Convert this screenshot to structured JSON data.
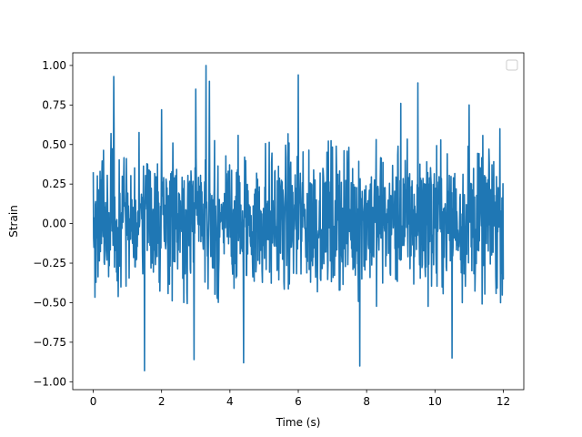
{
  "chart_data": {
    "type": "line",
    "title": "",
    "xlabel": "Time (s)",
    "ylabel": "Strain",
    "xlim": [
      -0.6,
      12.6
    ],
    "ylim": [
      -1.05,
      1.08
    ],
    "xticks": [
      0,
      2,
      4,
      6,
      8,
      10,
      12
    ],
    "xtick_labels": [
      "0",
      "2",
      "4",
      "6",
      "8",
      "10",
      "12"
    ],
    "yticks": [
      -1.0,
      -0.75,
      -0.5,
      -0.25,
      0.0,
      0.25,
      0.5,
      0.75,
      1.0
    ],
    "ytick_labels": [
      "−1.00",
      "−0.75",
      "−0.50",
      "−0.25",
      "0.00",
      "0.25",
      "0.50",
      "0.75",
      "1.00"
    ],
    "grid": false,
    "legend": {
      "placement": "top-right",
      "entries": []
    },
    "series": [
      {
        "color": "#1f77b4",
        "x_range": [
          0,
          12
        ],
        "approx_points": 1200,
        "typical_range": [
          -0.5,
          0.55
        ],
        "peaks": [
          {
            "x": 0.6,
            "y": 0.93
          },
          {
            "x": 1.5,
            "y": -0.93
          },
          {
            "x": 2.0,
            "y": 0.72
          },
          {
            "x": 2.95,
            "y": -0.86
          },
          {
            "x": 3.0,
            "y": 0.85
          },
          {
            "x": 3.3,
            "y": 1.0
          },
          {
            "x": 3.4,
            "y": 0.9
          },
          {
            "x": 4.4,
            "y": -0.88
          },
          {
            "x": 6.0,
            "y": 0.94
          },
          {
            "x": 7.8,
            "y": -0.9
          },
          {
            "x": 9.0,
            "y": 0.76
          },
          {
            "x": 9.5,
            "y": 0.89
          },
          {
            "x": 10.5,
            "y": -0.85
          },
          {
            "x": 11.0,
            "y": 0.75
          },
          {
            "x": 11.9,
            "y": 0.6
          }
        ]
      }
    ]
  }
}
